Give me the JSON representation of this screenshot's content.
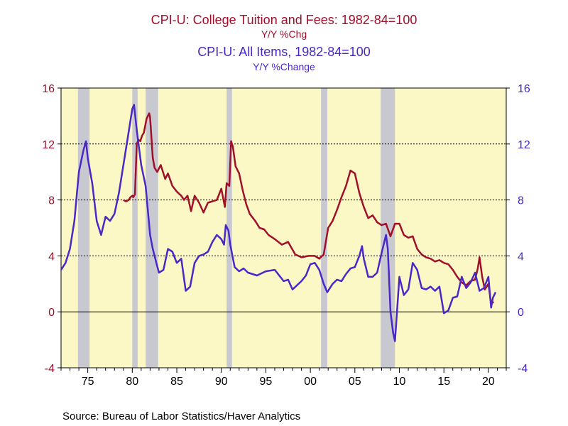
{
  "colors": {
    "series1": "#a0102a",
    "series2": "#4a28c8",
    "plot_bg": "#fbf8c6",
    "recession": "#c8c8d0"
  },
  "chart_data": {
    "type": "line",
    "title1": "CPI-U: College Tuition and Fees: 1982-84=100",
    "subtitle1": "Y/Y %Chg",
    "title2": "CPI-U: All Items, 1982-84=100",
    "subtitle2": "Y/Y %Change",
    "x_tick_labels": [
      "75",
      "80",
      "85",
      "90",
      "95",
      "00",
      "05",
      "10",
      "15",
      "20"
    ],
    "y_tick_labels": [
      "16",
      "12",
      "8",
      "4",
      "0",
      "-4"
    ],
    "ylim": [
      -4,
      16
    ],
    "xlim": [
      1972.0,
      2022.0
    ],
    "grid": "dashed horizontal at 4, 8, 12",
    "recessions": [
      [
        1973.9,
        1975.2
      ],
      [
        1980.0,
        1980.6
      ],
      [
        1981.5,
        1982.9
      ],
      [
        1990.6,
        1991.2
      ],
      [
        2001.2,
        2001.9
      ],
      [
        2007.9,
        2009.5
      ]
    ],
    "series": [
      {
        "axis": "left",
        "x": [
          1979.0,
          1979.3,
          1979.6,
          1979.8,
          1980.0,
          1980.1,
          1980.3,
          1980.5,
          1980.7,
          1980.9,
          1981.1,
          1981.3,
          1981.6,
          1981.9,
          1982.0,
          1982.3,
          1982.5,
          1982.8,
          1983.2,
          1983.7,
          1984.0,
          1984.5,
          1985.0,
          1985.5,
          1985.8,
          1986.2,
          1986.6,
          1987.0,
          1987.5,
          1988.0,
          1988.5,
          1989.0,
          1989.5,
          1990.0,
          1990.4,
          1990.6,
          1990.9,
          1991.1,
          1991.3,
          1991.6,
          1992.0,
          1992.4,
          1992.8,
          1993.2,
          1993.8,
          1994.3,
          1994.8,
          1995.3,
          1996.0,
          1996.8,
          1997.5,
          1998.3,
          1999.0,
          1999.8,
          2000.5,
          2001.0,
          2001.5,
          2002.0,
          2002.5,
          2003.0,
          2003.5,
          2004.0,
          2004.5,
          2005.0,
          2005.5,
          2006.0,
          2006.5,
          2007.0,
          2007.5,
          2008.0,
          2008.5,
          2009.0,
          2009.5,
          2010.0,
          2010.5,
          2011.0,
          2011.5,
          2012.0,
          2012.5,
          2013.0,
          2013.5,
          2014.0,
          2014.5,
          2015.0,
          2015.5,
          2016.0,
          2016.5,
          2017.0,
          2017.5,
          2018.0,
          2018.5,
          2018.8,
          2019.0,
          2019.3,
          2019.6,
          2020.0,
          2020.3,
          2020.6
        ],
        "values": [
          8.0,
          7.9,
          8.0,
          8.2,
          8.3,
          8.2,
          8.4,
          12.0,
          12.3,
          12.2,
          12.6,
          12.8,
          13.8,
          14.2,
          13.9,
          11.0,
          10.3,
          10.0,
          10.5,
          9.5,
          9.9,
          9.0,
          8.6,
          8.3,
          8.0,
          8.3,
          7.2,
          8.3,
          7.8,
          7.1,
          7.8,
          7.9,
          8.0,
          8.8,
          7.5,
          9.2,
          9.0,
          12.2,
          11.8,
          10.4,
          9.9,
          8.7,
          7.7,
          7.0,
          6.5,
          6.0,
          5.9,
          5.5,
          5.2,
          4.8,
          5.0,
          4.1,
          3.9,
          4.0,
          4.0,
          3.8,
          4.1,
          6.0,
          6.5,
          7.3,
          8.2,
          9.0,
          10.1,
          9.9,
          8.5,
          7.5,
          6.7,
          6.9,
          6.4,
          6.2,
          6.3,
          5.4,
          6.3,
          6.3,
          5.5,
          5.3,
          5.4,
          4.5,
          4.1,
          3.9,
          3.8,
          3.6,
          3.7,
          3.5,
          3.4,
          3.0,
          2.5,
          2.1,
          1.9,
          2.2,
          2.3,
          3.1,
          3.9,
          2.5,
          1.6,
          2.0,
          0.6,
          0.7
        ]
      },
      {
        "axis": "right",
        "x": [
          1972.0,
          1972.5,
          1973.0,
          1973.5,
          1974.0,
          1974.5,
          1974.8,
          1975.0,
          1975.5,
          1976.0,
          1976.5,
          1977.0,
          1977.5,
          1978.0,
          1978.5,
          1979.0,
          1979.5,
          1980.0,
          1980.2,
          1980.5,
          1981.0,
          1981.5,
          1982.0,
          1982.3,
          1982.7,
          1983.0,
          1983.5,
          1984.0,
          1984.5,
          1985.0,
          1985.5,
          1986.0,
          1986.5,
          1987.0,
          1987.5,
          1988.0,
          1988.5,
          1989.0,
          1989.5,
          1990.0,
          1990.3,
          1990.5,
          1990.8,
          1991.0,
          1991.5,
          1992.0,
          1992.5,
          1993.0,
          1994.0,
          1995.0,
          1996.0,
          1997.0,
          1997.5,
          1998.0,
          1999.0,
          1999.5,
          2000.0,
          2000.5,
          2001.0,
          2001.5,
          2001.9,
          2002.5,
          2003.0,
          2003.5,
          2004.0,
          2004.5,
          2005.0,
          2005.5,
          2005.8,
          2006.0,
          2006.5,
          2007.0,
          2007.5,
          2008.0,
          2008.5,
          2008.7,
          2009.0,
          2009.3,
          2009.5,
          2010.0,
          2010.5,
          2011.0,
          2011.5,
          2012.0,
          2012.5,
          2013.0,
          2013.5,
          2014.0,
          2014.5,
          2015.0,
          2015.5,
          2016.0,
          2016.5,
          2017.0,
          2017.5,
          2018.0,
          2018.5,
          2019.0,
          2019.5,
          2020.0,
          2020.3,
          2020.5,
          2020.8
        ],
        "values": [
          3.0,
          3.5,
          4.5,
          6.5,
          10.0,
          11.5,
          12.2,
          11.0,
          9.2,
          6.5,
          5.5,
          6.8,
          6.5,
          7.0,
          8.5,
          10.5,
          12.5,
          14.5,
          14.8,
          13.0,
          10.5,
          9.0,
          5.5,
          4.5,
          3.5,
          2.8,
          3.0,
          4.5,
          4.3,
          3.5,
          3.8,
          1.5,
          1.8,
          3.5,
          4.0,
          4.1,
          4.3,
          5.0,
          5.5,
          5.2,
          4.8,
          6.2,
          5.8,
          4.8,
          3.2,
          2.9,
          3.1,
          2.8,
          2.6,
          2.9,
          3.0,
          2.2,
          2.3,
          1.6,
          2.2,
          2.6,
          3.4,
          3.5,
          3.0,
          2.0,
          1.4,
          2.0,
          2.3,
          2.2,
          2.7,
          3.1,
          3.2,
          4.0,
          4.7,
          3.8,
          2.5,
          2.5,
          2.8,
          4.2,
          5.5,
          4.5,
          0.0,
          -1.5,
          -2.1,
          2.5,
          1.2,
          1.6,
          3.5,
          3.0,
          1.7,
          1.6,
          1.8,
          1.5,
          1.8,
          -0.1,
          0.1,
          1.0,
          1.1,
          2.5,
          1.7,
          2.1,
          2.8,
          1.5,
          1.7,
          2.5,
          0.3,
          1.0,
          1.4
        ]
      }
    ],
    "source": "Source:  Bureau of Labor Statistics/Haver Analytics"
  }
}
